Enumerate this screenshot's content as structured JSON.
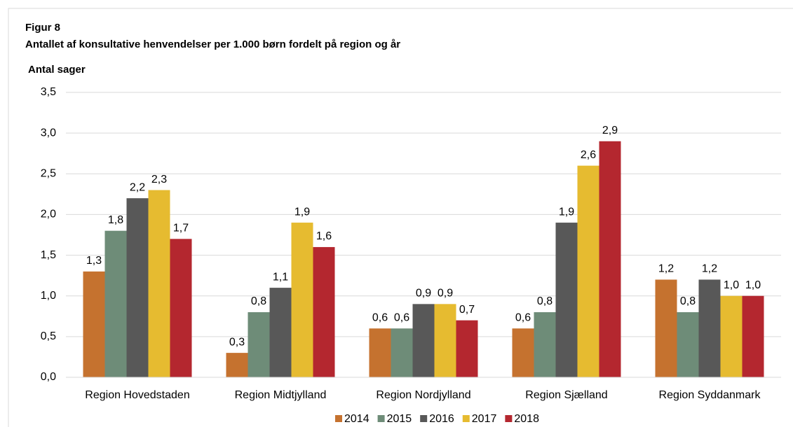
{
  "chart_data": {
    "type": "bar",
    "title": "Figur 8",
    "subtitle": "Antallet af konsultative henvendelser per 1.000 børn fordelt på region og år",
    "y_label": "Antal sager",
    "categories": [
      "Region Hovedstaden",
      "Region Midtjylland",
      "Region Nordjylland",
      "Region Sjælland",
      "Region Syddanmark"
    ],
    "series": [
      {
        "name": "2014",
        "color": "#c5722f",
        "values": [
          1.3,
          0.3,
          0.6,
          0.6,
          1.2
        ],
        "value_labels": [
          "1,3",
          "0,3",
          "0,6",
          "0,6",
          "1,2"
        ]
      },
      {
        "name": "2015",
        "color": "#6e8c78",
        "values": [
          1.8,
          0.8,
          0.6,
          0.8,
          0.8
        ],
        "value_labels": [
          "1,8",
          "0,8",
          "0,6",
          "0,8",
          "0,8"
        ]
      },
      {
        "name": "2016",
        "color": "#585858",
        "values": [
          2.2,
          1.1,
          0.9,
          1.9,
          1.2
        ],
        "value_labels": [
          "2,2",
          "1,1",
          "0,9",
          "1,9",
          "1,2"
        ]
      },
      {
        "name": "2017",
        "color": "#e6bb30",
        "values": [
          2.3,
          1.9,
          0.9,
          2.6,
          1.0
        ],
        "value_labels": [
          "2,3",
          "1,9",
          "0,9",
          "2,6",
          "1,0"
        ]
      },
      {
        "name": "2018",
        "color": "#b4272f",
        "values": [
          1.7,
          1.6,
          0.7,
          2.9,
          1.0
        ],
        "value_labels": [
          "1,7",
          "1,6",
          "0,7",
          "2,9",
          "1,0"
        ]
      }
    ],
    "ylim": [
      0,
      3.5
    ],
    "yticks": [
      {
        "value": 0,
        "label": "0,0"
      },
      {
        "value": 0.5,
        "label": "0,5"
      },
      {
        "value": 1,
        "label": "1,0"
      },
      {
        "value": 1.5,
        "label": "1,5"
      },
      {
        "value": 2,
        "label": "2,0"
      },
      {
        "value": 2.5,
        "label": "2,5"
      },
      {
        "value": 3,
        "label": "3,0"
      },
      {
        "value": 3.5,
        "label": "3,5"
      }
    ],
    "grid": true,
    "legend": "bottom"
  }
}
